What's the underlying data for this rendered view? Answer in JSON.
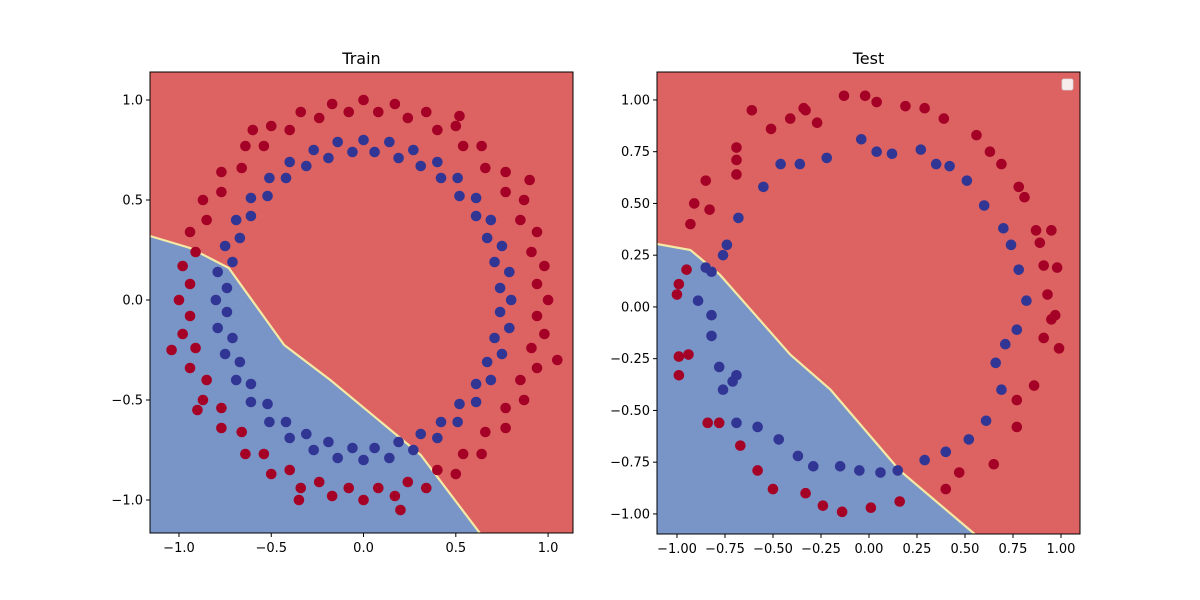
{
  "colors": {
    "region_class0": "#7994c6",
    "region_class1": "#dc6362",
    "point_class0": "#313695",
    "point_class1": "#a50026",
    "boundary": "#f5e9a6"
  },
  "chart_data": [
    {
      "type": "scatter",
      "title": "Train",
      "xlim": [
        -1.157,
        1.135
      ],
      "ylim": [
        -1.165,
        1.14
      ],
      "xticks": [
        -1.0,
        -0.5,
        0.0,
        0.5,
        1.0
      ],
      "xtick_labels": [
        "−1.0",
        "−0.5",
        "0.0",
        "0.5",
        "1.0"
      ],
      "yticks": [
        -1.0,
        -0.5,
        0.0,
        0.5,
        1.0
      ],
      "ytick_labels": [
        "−1.0",
        "−0.5",
        "0.0",
        "0.5",
        "1.0"
      ],
      "grid": false,
      "decision_boundary": [
        [
          -1.157,
          0.32
        ],
        [
          -0.94,
          0.26
        ],
        [
          -0.73,
          0.16
        ],
        [
          -0.43,
          -0.225
        ],
        [
          -0.18,
          -0.4
        ],
        [
          0.31,
          -0.775
        ],
        [
          0.63,
          -1.165
        ]
      ],
      "class1_points": [
        [
          1.0,
          0
        ],
        [
          0.98,
          0.17
        ],
        [
          0.94,
          0.34
        ],
        [
          0.87,
          0.5
        ],
        [
          0.77,
          0.64
        ],
        [
          0.64,
          0.77
        ],
        [
          0.5,
          0.87
        ],
        [
          0.34,
          0.94
        ],
        [
          0.17,
          0.98
        ],
        [
          0,
          1.0
        ],
        [
          0.94,
          0.08
        ],
        [
          0.91,
          0.24
        ],
        [
          0.85,
          0.4
        ],
        [
          0.77,
          0.54
        ],
        [
          0.66,
          0.66
        ],
        [
          0.54,
          0.77
        ],
        [
          0.4,
          0.85
        ],
        [
          0.24,
          0.91
        ],
        [
          0.08,
          0.94
        ],
        [
          -0.17,
          0.98
        ],
        [
          -0.34,
          0.94
        ],
        [
          -0.5,
          0.87
        ],
        [
          -0.64,
          0.77
        ],
        [
          -0.77,
          0.64
        ],
        [
          -0.87,
          0.5
        ],
        [
          -0.94,
          0.34
        ],
        [
          -0.98,
          0.17
        ],
        [
          -1.0,
          0
        ],
        [
          -0.08,
          0.94
        ],
        [
          -0.24,
          0.91
        ],
        [
          -0.4,
          0.85
        ],
        [
          -0.54,
          0.77
        ],
        [
          -0.66,
          0.66
        ],
        [
          -0.77,
          0.54
        ],
        [
          -0.85,
          0.4
        ],
        [
          -0.91,
          0.24
        ],
        [
          -0.94,
          0.08
        ],
        [
          -0.98,
          -0.17
        ],
        [
          -0.94,
          -0.34
        ],
        [
          -0.87,
          -0.5
        ],
        [
          -0.77,
          -0.64
        ],
        [
          -0.64,
          -0.77
        ],
        [
          -0.5,
          -0.87
        ],
        [
          -0.34,
          -0.94
        ],
        [
          -0.17,
          -0.98
        ],
        [
          0,
          -1.0
        ],
        [
          -0.94,
          -0.08
        ],
        [
          -0.91,
          -0.24
        ],
        [
          -0.85,
          -0.4
        ],
        [
          -0.77,
          -0.54
        ],
        [
          -0.66,
          -0.66
        ],
        [
          -0.54,
          -0.77
        ],
        [
          -0.4,
          -0.85
        ],
        [
          -0.24,
          -0.91
        ],
        [
          -0.08,
          -0.94
        ],
        [
          0.17,
          -0.98
        ],
        [
          0.34,
          -0.94
        ],
        [
          0.5,
          -0.87
        ],
        [
          0.64,
          -0.77
        ],
        [
          0.77,
          -0.64
        ],
        [
          0.87,
          -0.5
        ],
        [
          0.94,
          -0.34
        ],
        [
          0.98,
          -0.17
        ],
        [
          0.08,
          -0.94
        ],
        [
          0.24,
          -0.91
        ],
        [
          0.4,
          -0.85
        ],
        [
          0.54,
          -0.77
        ],
        [
          0.66,
          -0.66
        ],
        [
          0.77,
          -0.54
        ],
        [
          0.85,
          -0.4
        ],
        [
          0.91,
          -0.24
        ],
        [
          0.94,
          -0.08
        ],
        [
          0.52,
          0.92
        ],
        [
          -0.6,
          0.85
        ],
        [
          -1.04,
          -0.25
        ],
        [
          0.2,
          -1.05
        ],
        [
          1.05,
          -0.3
        ],
        [
          0.9,
          0.6
        ],
        [
          -0.9,
          -0.55
        ],
        [
          -0.35,
          -1.0
        ]
      ],
      "class0_points": [
        [
          0.8,
          0
        ],
        [
          0.79,
          0.14
        ],
        [
          0.75,
          0.27
        ],
        [
          0.69,
          0.4
        ],
        [
          0.61,
          0.51
        ],
        [
          0.51,
          0.61
        ],
        [
          0.4,
          0.69
        ],
        [
          0.27,
          0.75
        ],
        [
          0.14,
          0.79
        ],
        [
          0,
          0.8
        ],
        [
          0.74,
          0.06
        ],
        [
          0.71,
          0.19
        ],
        [
          0.67,
          0.31
        ],
        [
          0.61,
          0.42
        ],
        [
          0.52,
          0.52
        ],
        [
          0.42,
          0.61
        ],
        [
          0.31,
          0.67
        ],
        [
          0.19,
          0.71
        ],
        [
          0.06,
          0.74
        ],
        [
          -0.14,
          0.79
        ],
        [
          -0.27,
          0.75
        ],
        [
          -0.4,
          0.69
        ],
        [
          -0.51,
          0.61
        ],
        [
          -0.61,
          0.51
        ],
        [
          -0.69,
          0.4
        ],
        [
          -0.75,
          0.27
        ],
        [
          -0.79,
          0.14
        ],
        [
          -0.8,
          0
        ],
        [
          -0.06,
          0.74
        ],
        [
          -0.19,
          0.71
        ],
        [
          -0.31,
          0.67
        ],
        [
          -0.42,
          0.61
        ],
        [
          -0.52,
          0.52
        ],
        [
          -0.61,
          0.42
        ],
        [
          -0.67,
          0.31
        ],
        [
          -0.71,
          0.19
        ],
        [
          -0.74,
          0.06
        ],
        [
          -0.79,
          -0.14
        ],
        [
          -0.75,
          -0.27
        ],
        [
          -0.69,
          -0.4
        ],
        [
          -0.61,
          -0.51
        ],
        [
          -0.51,
          -0.61
        ],
        [
          -0.4,
          -0.69
        ],
        [
          -0.27,
          -0.75
        ],
        [
          -0.14,
          -0.79
        ],
        [
          0,
          -0.8
        ],
        [
          -0.74,
          -0.06
        ],
        [
          -0.71,
          -0.19
        ],
        [
          -0.67,
          -0.31
        ],
        [
          -0.61,
          -0.42
        ],
        [
          -0.52,
          -0.52
        ],
        [
          -0.42,
          -0.61
        ],
        [
          -0.31,
          -0.67
        ],
        [
          -0.19,
          -0.71
        ],
        [
          -0.06,
          -0.74
        ],
        [
          0.14,
          -0.79
        ],
        [
          0.27,
          -0.75
        ],
        [
          0.4,
          -0.69
        ],
        [
          0.51,
          -0.61
        ],
        [
          0.61,
          -0.51
        ],
        [
          0.69,
          -0.4
        ],
        [
          0.75,
          -0.27
        ],
        [
          0.79,
          -0.14
        ],
        [
          0.06,
          -0.74
        ],
        [
          0.19,
          -0.71
        ],
        [
          0.31,
          -0.67
        ],
        [
          0.42,
          -0.61
        ],
        [
          0.52,
          -0.52
        ],
        [
          0.61,
          -0.42
        ],
        [
          0.67,
          -0.31
        ],
        [
          0.71,
          -0.19
        ],
        [
          0.74,
          -0.06
        ]
      ]
    },
    {
      "type": "scatter",
      "title": "Test",
      "xlim": [
        -1.104,
        1.099
      ],
      "ylim": [
        -1.097,
        1.135
      ],
      "xticks": [
        -1.0,
        -0.75,
        -0.5,
        -0.25,
        0.0,
        0.25,
        0.5,
        0.75,
        1.0
      ],
      "xtick_labels": [
        "−1.00",
        "−0.75",
        "−0.50",
        "−0.25",
        "0.00",
        "0.25",
        "0.50",
        "0.75",
        "1.00"
      ],
      "yticks": [
        -1.0,
        -0.75,
        -0.5,
        -0.25,
        0.0,
        0.25,
        0.5,
        0.75,
        1.0
      ],
      "ytick_labels": [
        "−1.00",
        "−0.75",
        "−0.50",
        "−0.25",
        "0.00",
        "0.25",
        "0.50",
        "0.75",
        "1.00"
      ],
      "grid": false,
      "legend": {
        "placement": "top-right",
        "entries": []
      },
      "decision_boundary": [
        [
          -1.104,
          0.304
        ],
        [
          -0.93,
          0.275
        ],
        [
          -0.776,
          0.155
        ],
        [
          -0.41,
          -0.23
        ],
        [
          -0.2,
          -0.4
        ],
        [
          0.16,
          -0.79
        ],
        [
          0.55,
          -1.097
        ]
      ],
      "class1_points": [
        [
          -0.61,
          0.95
        ],
        [
          -0.51,
          0.86
        ],
        [
          -0.41,
          0.91
        ],
        [
          -0.33,
          0.95
        ],
        [
          -0.27,
          0.89
        ],
        [
          -0.13,
          1.02
        ],
        [
          -0.02,
          1.02
        ],
        [
          0.04,
          0.99
        ],
        [
          0.19,
          0.97
        ],
        [
          0.29,
          0.96
        ],
        [
          0.39,
          0.91
        ],
        [
          0.56,
          0.83
        ],
        [
          0.63,
          0.75
        ],
        [
          0.69,
          0.69
        ],
        [
          0.78,
          0.58
        ],
        [
          0.81,
          0.53
        ],
        [
          0.87,
          0.37
        ],
        [
          0.89,
          0.31
        ],
        [
          0.95,
          0.37
        ],
        [
          0.91,
          0.2
        ],
        [
          0.98,
          0.19
        ],
        [
          0.93,
          0.06
        ],
        [
          0.95,
          -0.06
        ],
        [
          0.97,
          -0.04
        ],
        [
          0.91,
          -0.15
        ],
        [
          0.99,
          -0.2
        ],
        [
          0.86,
          -0.38
        ],
        [
          0.77,
          -0.45
        ],
        [
          0.77,
          -0.58
        ],
        [
          0.65,
          -0.76
        ],
        [
          0.47,
          -0.8
        ],
        [
          0.4,
          -0.88
        ],
        [
          0.16,
          -0.94
        ],
        [
          0.01,
          -0.97
        ],
        [
          -0.14,
          -0.99
        ],
        [
          -0.24,
          -0.96
        ],
        [
          -0.33,
          -0.9
        ],
        [
          -0.5,
          -0.88
        ],
        [
          -0.58,
          -0.79
        ],
        [
          -0.67,
          -0.67
        ],
        [
          -0.78,
          -0.56
        ],
        [
          -0.84,
          -0.56
        ],
        [
          -0.99,
          -0.24
        ],
        [
          -0.94,
          -0.23
        ],
        [
          -0.99,
          -0.33
        ],
        [
          -1.0,
          0.06
        ],
        [
          -0.99,
          0.11
        ],
        [
          -0.95,
          0.18
        ],
        [
          -0.93,
          0.4
        ],
        [
          -0.91,
          0.5
        ],
        [
          -0.85,
          0.61
        ],
        [
          -0.83,
          0.47
        ],
        [
          -0.69,
          0.64
        ],
        [
          -0.69,
          0.71
        ],
        [
          -0.69,
          0.77
        ],
        [
          -0.34,
          0.96
        ]
      ],
      "class0_points": [
        [
          -0.76,
          0.25
        ],
        [
          -0.74,
          0.3
        ],
        [
          -0.68,
          0.43
        ],
        [
          -0.55,
          0.58
        ],
        [
          -0.46,
          0.69
        ],
        [
          -0.36,
          0.69
        ],
        [
          -0.22,
          0.72
        ],
        [
          -0.04,
          0.81
        ],
        [
          0.04,
          0.75
        ],
        [
          0.12,
          0.74
        ],
        [
          0.27,
          0.76
        ],
        [
          0.35,
          0.69
        ],
        [
          0.42,
          0.68
        ],
        [
          0.51,
          0.61
        ],
        [
          0.6,
          0.49
        ],
        [
          0.7,
          0.38
        ],
        [
          0.74,
          0.3
        ],
        [
          0.78,
          0.18
        ],
        [
          0.82,
          0.03
        ],
        [
          0.77,
          -0.11
        ],
        [
          0.71,
          -0.18
        ],
        [
          0.66,
          -0.27
        ],
        [
          0.69,
          -0.4
        ],
        [
          0.61,
          -0.55
        ],
        [
          0.52,
          -0.64
        ],
        [
          0.4,
          -0.7
        ],
        [
          0.29,
          -0.74
        ],
        [
          0.15,
          -0.79
        ],
        [
          0.06,
          -0.8
        ],
        [
          -0.05,
          -0.79
        ],
        [
          -0.15,
          -0.77
        ],
        [
          -0.29,
          -0.77
        ],
        [
          -0.37,
          -0.72
        ],
        [
          -0.47,
          -0.64
        ],
        [
          -0.58,
          -0.58
        ],
        [
          -0.69,
          -0.56
        ],
        [
          -0.76,
          -0.4
        ],
        [
          -0.71,
          -0.36
        ],
        [
          -0.82,
          -0.14
        ],
        [
          -0.82,
          -0.04
        ],
        [
          -0.89,
          0.03
        ],
        [
          -0.82,
          0.17
        ],
        [
          -0.85,
          0.19
        ],
        [
          -0.78,
          -0.29
        ],
        [
          -0.69,
          -0.33
        ]
      ]
    }
  ]
}
